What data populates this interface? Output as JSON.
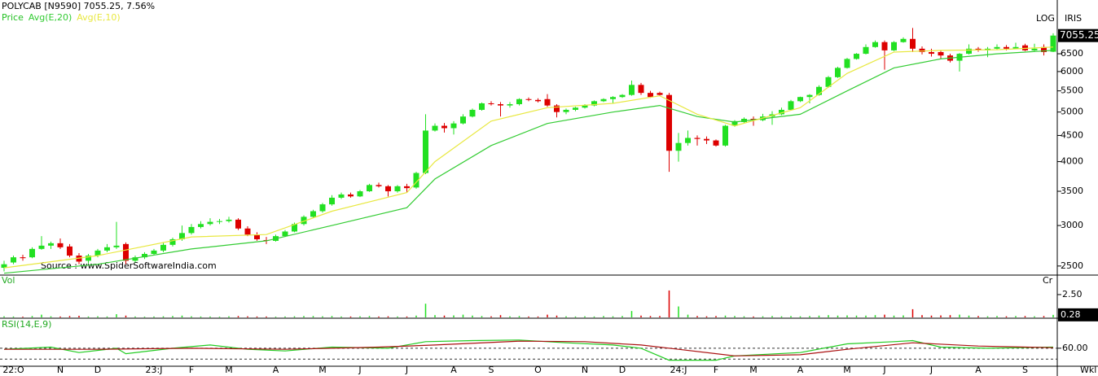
{
  "chart_data": [
    {
      "type": "candlestick",
      "title": "POLYCAB [N9590] 7055.25,  7.56%",
      "scale_label": "LOG",
      "exchange_label": "IRIS",
      "period_label": "Wkl",
      "annotation": "Source : www.SpiderSoftwareIndia.com",
      "log": true,
      "up_color": "#22e022",
      "down_color": "#dd0000",
      "ylim": [
        2400,
        8280
      ],
      "yticks": [
        2500,
        3000,
        3500,
        4000,
        4500,
        5000,
        5500,
        6000,
        6500
      ],
      "categories": [
        null,
        "22:O",
        null,
        null,
        null,
        null,
        "N",
        null,
        null,
        null,
        "D",
        null,
        null,
        null,
        null,
        null,
        "23:J",
        null,
        null,
        null,
        "F",
        null,
        null,
        null,
        "M",
        null,
        null,
        null,
        null,
        "A",
        null,
        null,
        null,
        null,
        "M",
        null,
        null,
        null,
        "J",
        null,
        null,
        null,
        null,
        "J",
        null,
        null,
        null,
        null,
        "A",
        null,
        null,
        null,
        "S",
        null,
        null,
        null,
        null,
        "O",
        null,
        null,
        null,
        null,
        "N",
        null,
        null,
        null,
        "D",
        null,
        null,
        null,
        null,
        null,
        "24:J",
        null,
        null,
        null,
        "F",
        null,
        null,
        null,
        "M",
        null,
        null,
        null,
        null,
        "A",
        null,
        null,
        null,
        null,
        "M",
        null,
        null,
        null,
        "J",
        null,
        null,
        null,
        null,
        "J",
        null,
        null,
        null,
        null,
        "A",
        null,
        null,
        null,
        null,
        "S",
        null,
        null,
        null
      ],
      "series": [
        {
          "name": "Price",
          "color": "#22c022",
          "ohlc": [
            [
              2480,
              2560,
              2440,
              2520
            ],
            [
              2540,
              2620,
              2520,
              2600
            ],
            [
              2600,
              2630,
              2560,
              2590
            ],
            [
              2600,
              2720,
              2590,
              2700
            ],
            [
              2700,
              2860,
              2690,
              2740
            ],
            [
              2740,
              2790,
              2700,
              2770
            ],
            [
              2770,
              2830,
              2700,
              2720
            ],
            [
              2730,
              2760,
              2600,
              2620
            ],
            [
              2620,
              2650,
              2520,
              2550
            ],
            [
              2560,
              2640,
              2530,
              2620
            ],
            [
              2620,
              2700,
              2600,
              2680
            ],
            [
              2680,
              2760,
              2660,
              2720
            ],
            [
              2720,
              3050,
              2700,
              2740
            ],
            [
              2760,
              2780,
              2520,
              2560
            ],
            [
              2560,
              2620,
              2540,
              2600
            ],
            [
              2600,
              2660,
              2580,
              2640
            ],
            [
              2640,
              2700,
              2620,
              2680
            ],
            [
              2680,
              2780,
              2660,
              2750
            ],
            [
              2750,
              2840,
              2730,
              2820
            ],
            [
              2820,
              3000,
              2800,
              2900
            ],
            [
              2900,
              3020,
              2880,
              2980
            ],
            [
              2980,
              3060,
              2960,
              3020
            ],
            [
              3020,
              3100,
              3000,
              3050
            ],
            [
              3050,
              3090,
              3020,
              3060
            ],
            [
              3060,
              3120,
              3040,
              3080
            ],
            [
              3080,
              3100,
              2940,
              2960
            ],
            [
              2960,
              2990,
              2860,
              2880
            ],
            [
              2880,
              2910,
              2800,
              2820
            ],
            [
              2810,
              2850,
              2760,
              2800
            ],
            [
              2800,
              2880,
              2790,
              2860
            ],
            [
              2860,
              2940,
              2850,
              2920
            ],
            [
              2920,
              3040,
              2910,
              3020
            ],
            [
              3020,
              3140,
              3000,
              3120
            ],
            [
              3120,
              3220,
              3100,
              3200
            ],
            [
              3200,
              3320,
              3180,
              3300
            ],
            [
              3300,
              3440,
              3280,
              3400
            ],
            [
              3400,
              3480,
              3380,
              3450
            ],
            [
              3450,
              3480,
              3400,
              3420
            ],
            [
              3420,
              3520,
              3410,
              3500
            ],
            [
              3500,
              3620,
              3490,
              3600
            ],
            [
              3600,
              3640,
              3560,
              3580
            ],
            [
              3580,
              3600,
              3420,
              3500
            ],
            [
              3500,
              3600,
              3480,
              3580
            ],
            [
              3580,
              3620,
              3480,
              3550
            ],
            [
              3560,
              3820,
              3540,
              3800
            ],
            [
              3800,
              4950,
              3780,
              4600
            ],
            [
              4600,
              4750,
              4580,
              4700
            ],
            [
              4700,
              4760,
              4560,
              4650
            ],
            [
              4650,
              4800,
              4520,
              4750
            ],
            [
              4750,
              4950,
              4730,
              4900
            ],
            [
              4900,
              5080,
              4880,
              5050
            ],
            [
              5050,
              5220,
              5030,
              5200
            ],
            [
              5200,
              5250,
              5150,
              5180
            ],
            [
              5180,
              5230,
              4900,
              5150
            ],
            [
              5150,
              5230,
              5100,
              5180
            ],
            [
              5180,
              5320,
              5150,
              5300
            ],
            [
              5300,
              5340,
              5250,
              5280
            ],
            [
              5280,
              5320,
              5220,
              5250
            ],
            [
              5300,
              5420,
              5120,
              5150
            ],
            [
              5150,
              5180,
              4880,
              5000
            ],
            [
              5000,
              5080,
              4950,
              5050
            ],
            [
              5050,
              5120,
              5020,
              5100
            ],
            [
              5100,
              5180,
              5080,
              5150
            ],
            [
              5150,
              5270,
              5130,
              5250
            ],
            [
              5250,
              5320,
              5230,
              5300
            ],
            [
              5300,
              5370,
              5200,
              5350
            ],
            [
              5350,
              5420,
              5330,
              5400
            ],
            [
              5400,
              5760,
              5380,
              5650
            ],
            [
              5650,
              5700,
              5400,
              5450
            ],
            [
              5450,
              5500,
              5330,
              5350
            ],
            [
              5450,
              5480,
              5380,
              5400
            ],
            [
              5400,
              5450,
              3820,
              4200
            ],
            [
              4200,
              4550,
              4000,
              4350
            ],
            [
              4350,
              4600,
              4300,
              4450
            ],
            [
              4450,
              4500,
              4300,
              4430
            ],
            [
              4430,
              4480,
              4330,
              4400
            ],
            [
              4400,
              4420,
              4280,
              4300
            ],
            [
              4300,
              4720,
              4280,
              4700
            ],
            [
              4700,
              4820,
              4680,
              4800
            ],
            [
              4780,
              4880,
              4760,
              4850
            ],
            [
              4850,
              4900,
              4700,
              4820
            ],
            [
              4820,
              4960,
              4800,
              4900
            ],
            [
              4900,
              5020,
              4720,
              4950
            ],
            [
              4950,
              5100,
              4930,
              5050
            ],
            [
              5050,
              5280,
              5030,
              5250
            ],
            [
              5250,
              5360,
              5230,
              5350
            ],
            [
              5350,
              5420,
              5200,
              5400
            ],
            [
              5400,
              5640,
              5380,
              5600
            ],
            [
              5600,
              5880,
              5580,
              5850
            ],
            [
              5850,
              6130,
              5830,
              6100
            ],
            [
              6100,
              6380,
              6080,
              6350
            ],
            [
              6350,
              6520,
              6330,
              6500
            ],
            [
              6500,
              6780,
              6480,
              6700
            ],
            [
              6700,
              6900,
              6680,
              6850
            ],
            [
              6850,
              6900,
              6050,
              6600
            ],
            [
              6600,
              6880,
              6580,
              6850
            ],
            [
              6850,
              7000,
              6830,
              6950
            ],
            [
              6950,
              7300,
              6550,
              6650
            ],
            [
              6650,
              6720,
              6480,
              6550
            ],
            [
              6550,
              6650,
              6420,
              6500
            ],
            [
              6550,
              6600,
              6350,
              6450
            ],
            [
              6450,
              6500,
              6250,
              6300
            ],
            [
              6300,
              6520,
              6000,
              6500
            ],
            [
              6500,
              6780,
              6480,
              6650
            ],
            [
              6650,
              6700,
              6560,
              6600
            ],
            [
              6600,
              6700,
              6400,
              6650
            ],
            [
              6650,
              6780,
              6620,
              6700
            ],
            [
              6700,
              6760,
              6600,
              6650
            ],
            [
              6650,
              6830,
              6640,
              6700
            ],
            [
              6750,
              6800,
              6580,
              6600
            ],
            [
              6600,
              6800,
              6580,
              6650
            ],
            [
              6700,
              6780,
              6450,
              6550
            ],
            [
              6560,
              7130,
              6550,
              7055.25
            ]
          ]
        },
        {
          "name": "Avg(E,20)",
          "color": "#33cc33",
          "x": [
            0,
            10,
            20,
            28,
            35,
            43,
            46,
            52,
            58,
            65,
            70,
            74,
            78,
            85,
            90,
            95,
            100,
            106,
            112
          ],
          "values": [
            2420,
            2520,
            2700,
            2800,
            3000,
            3250,
            3700,
            4300,
            4750,
            5000,
            5150,
            4900,
            4780,
            4950,
            5500,
            6100,
            6350,
            6500,
            6600
          ]
        },
        {
          "name": "Avg(E,10)",
          "color": "#e8e840",
          "x": [
            0,
            10,
            20,
            28,
            35,
            43,
            46,
            52,
            58,
            65,
            70,
            74,
            78,
            85,
            90,
            95,
            100,
            106,
            112
          ],
          "values": [
            2480,
            2620,
            2850,
            2880,
            3200,
            3480,
            4000,
            4800,
            5100,
            5200,
            5380,
            4950,
            4700,
            5100,
            5950,
            6550,
            6600,
            6620,
            6700
          ]
        }
      ]
    },
    {
      "type": "volume",
      "title": "Vol",
      "unit_label": "Cr",
      "ylim": [
        0,
        4.46
      ],
      "yticks": [
        {
          "value": 2.5,
          "label": "2.50"
        }
      ],
      "values": [
        0.12,
        0.1,
        0.08,
        0.15,
        0.3,
        0.12,
        0.1,
        0.15,
        0.18,
        0.1,
        0.12,
        0.1,
        0.35,
        0.2,
        0.1,
        0.08,
        0.1,
        0.12,
        0.15,
        0.2,
        0.12,
        0.1,
        0.1,
        0.08,
        0.12,
        0.15,
        0.12,
        0.1,
        0.1,
        0.08,
        0.1,
        0.12,
        0.15,
        0.15,
        0.12,
        0.15,
        0.1,
        0.1,
        0.12,
        0.15,
        0.1,
        0.12,
        0.1,
        0.1,
        0.2,
        1.5,
        0.25,
        0.2,
        0.22,
        0.3,
        0.2,
        0.15,
        0.12,
        0.25,
        0.12,
        0.15,
        0.1,
        0.1,
        0.3,
        0.2,
        0.12,
        0.1,
        0.12,
        0.1,
        0.15,
        0.12,
        0.15,
        0.7,
        0.2,
        0.15,
        0.15,
        2.95,
        1.2,
        0.3,
        0.15,
        0.12,
        0.15,
        0.2,
        0.15,
        0.12,
        0.1,
        0.12,
        0.15,
        0.12,
        0.15,
        0.12,
        0.15,
        0.2,
        0.25,
        0.2,
        0.22,
        0.2,
        0.2,
        0.25,
        0.3,
        0.2,
        0.22,
        0.9,
        0.25,
        0.2,
        0.22,
        0.25,
        0.3,
        0.2,
        0.15,
        0.12,
        0.15,
        0.12,
        0.15,
        0.15,
        0.12,
        0.15,
        0.28
      ]
    },
    {
      "type": "line",
      "title": "RSI(14,E,9)",
      "ylim": [
        30,
        112
      ],
      "yticks": [
        {
          "value": 60,
          "label": "60.00"
        }
      ],
      "reference_lines": [
        60,
        40
      ],
      "series": [
        {
          "color": "#22cc22",
          "x": [
            0,
            5,
            8,
            12,
            13,
            18,
            22,
            26,
            30,
            35,
            41,
            45,
            50,
            55,
            60,
            65,
            68,
            71,
            76,
            78,
            85,
            90,
            95,
            97,
            100,
            105,
            112
          ],
          "values": [
            58,
            62,
            52,
            60,
            50,
            60,
            66,
            58,
            55,
            62,
            60,
            72,
            74,
            75,
            70,
            66,
            60,
            38,
            38,
            46,
            52,
            68,
            72,
            74,
            62,
            60,
            62
          ]
        },
        {
          "color": "#aa1111",
          "x": [
            0,
            10,
            20,
            30,
            40,
            46,
            55,
            62,
            68,
            72,
            78,
            85,
            90,
            97,
            104,
            112
          ],
          "values": [
            58,
            58,
            60,
            58,
            62,
            66,
            73,
            72,
            66,
            58,
            46,
            48,
            58,
            70,
            64,
            61
          ]
        }
      ]
    }
  ]
}
